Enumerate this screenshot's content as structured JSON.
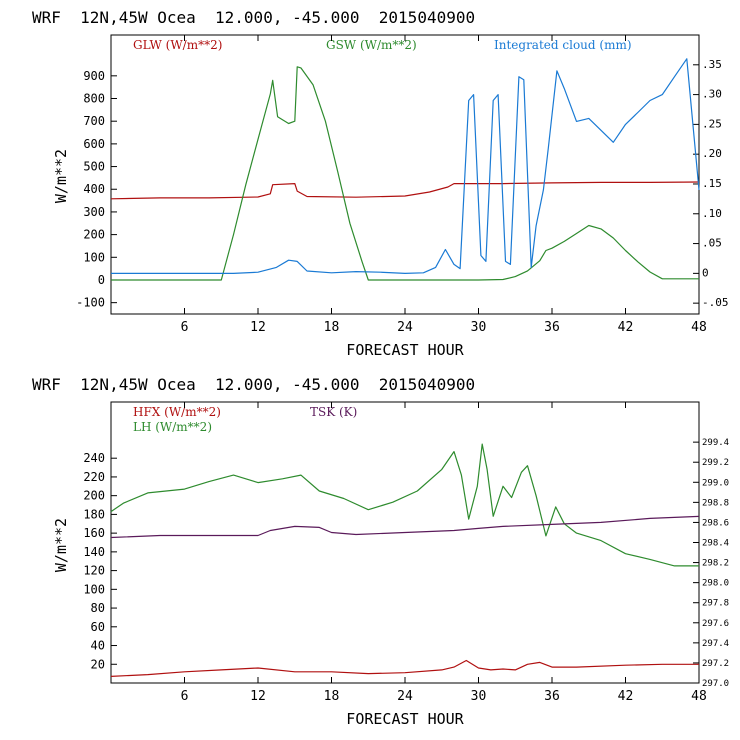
{
  "panels": [
    {
      "title": "WRF  12N,45W Ocea  12.000, -45.000  2015040900",
      "type": "line",
      "xlabel": "FORECAST HOUR",
      "ylabel": "W/m**2",
      "xlim": [
        0,
        48
      ],
      "ylim": [
        -150,
        1080
      ],
      "y2lim": [
        -0.0682,
        0.4
      ],
      "xticks": [
        6,
        12,
        18,
        24,
        30,
        36,
        42,
        48
      ],
      "yticks": [
        -100,
        0,
        100,
        200,
        300,
        400,
        500,
        600,
        700,
        800,
        900
      ],
      "yticklabels": [
        "-100",
        "0",
        "100",
        "200",
        "300",
        "400",
        "500",
        "600",
        "700",
        "800",
        "900"
      ],
      "y2ticks": [
        -0.05,
        0,
        0.05,
        0.1,
        0.15,
        0.2,
        0.25,
        0.3,
        0.35
      ],
      "y2ticklabels": [
        "-.05",
        "0",
        ".05",
        ".10",
        ".15",
        ".20",
        ".25",
        ".30",
        ".35"
      ],
      "series": [
        {
          "name": "GLW (W/m**2)",
          "color": "#b01010",
          "axis": "left",
          "x": [
            0,
            4,
            8,
            12,
            13,
            13.2,
            15,
            15.2,
            16,
            20,
            24,
            26,
            27.5,
            28,
            32,
            36,
            40,
            44,
            48
          ],
          "y": [
            358,
            362,
            362,
            366,
            380,
            420,
            425,
            392,
            368,
            365,
            370,
            388,
            410,
            425,
            425,
            428,
            430,
            430,
            432
          ]
        },
        {
          "name": "GSW (W/m**2)",
          "color": "#2e8b2e",
          "axis": "left",
          "x": [
            0,
            9,
            10,
            11,
            12,
            13,
            13.2,
            13.6,
            14.5,
            15,
            15.2,
            15.5,
            16.5,
            17.5,
            18.5,
            19.5,
            20.5,
            21,
            24,
            27,
            28,
            30,
            32,
            33,
            34,
            35,
            35.5,
            36,
            37,
            38,
            39,
            40,
            41,
            42,
            43,
            44,
            45,
            48
          ],
          "y": [
            0,
            0,
            200,
            420,
            620,
            820,
            880,
            720,
            690,
            700,
            940,
            935,
            860,
            700,
            480,
            250,
            80,
            0,
            0,
            0,
            0,
            0,
            2,
            15,
            40,
            85,
            130,
            140,
            170,
            205,
            240,
            225,
            185,
            130,
            80,
            35,
            5,
            5
          ]
        },
        {
          "name": "Integrated cloud (mm)",
          "color": "#1a7ad4",
          "axis": "right",
          "x": [
            0,
            10,
            12,
            13.5,
            14.5,
            15.2,
            16,
            18,
            20,
            22,
            24,
            25.5,
            26.5,
            27.3,
            28,
            28.5,
            29.2,
            29.6,
            30.2,
            30.6,
            31.2,
            31.6,
            32.2,
            32.6,
            33.3,
            33.7,
            34.3,
            34.7,
            35.3,
            35.7,
            36.4,
            37,
            38,
            39,
            40,
            41,
            42,
            43,
            44,
            45,
            46,
            47,
            48
          ],
          "y": [
            0,
            0,
            0.002,
            0.01,
            0.022,
            0.02,
            0.004,
            0.001,
            0.003,
            0.002,
            0,
            0.001,
            0.01,
            0.04,
            0.015,
            0.008,
            0.29,
            0.3,
            0.03,
            0.02,
            0.29,
            0.3,
            0.02,
            0.015,
            0.33,
            0.325,
            0.01,
            0.08,
            0.14,
            0.21,
            0.34,
            0.31,
            0.255,
            0.26,
            0.24,
            0.22,
            0.25,
            0.27,
            0.29,
            0.3,
            0.33,
            0.36,
            0.14
          ]
        }
      ]
    },
    {
      "title": "WRF  12N,45W Ocea  12.000, -45.000  2015040900",
      "type": "line",
      "xlabel": "FORECAST HOUR",
      "ylabel": "W/m**2",
      "xlim": [
        0,
        48
      ],
      "ylim": [
        0,
        300
      ],
      "y2lim": [
        297.0,
        299.8
      ],
      "xticks": [
        6,
        12,
        18,
        24,
        30,
        36,
        42,
        48
      ],
      "yticks": [
        20,
        40,
        60,
        80,
        100,
        120,
        140,
        160,
        180,
        200,
        220,
        240
      ],
      "yticklabels": [
        "20",
        "40",
        "60",
        "80",
        "100",
        "120",
        "140",
        "160",
        "180",
        "200",
        "220",
        "240"
      ],
      "y2ticks": [
        297.0,
        297.2,
        297.4,
        297.6,
        297.8,
        298.0,
        298.2,
        298.4,
        298.6,
        298.8,
        299.0,
        299.2,
        299.4
      ],
      "y2ticklabels": [
        "297.0",
        "297.2",
        "297.4",
        "297.6",
        "297.8",
        "298.0",
        "298.2",
        "298.4",
        "298.6",
        "298.8",
        "299.0",
        "299.2",
        "299.4"
      ],
      "series": [
        {
          "name": "HFX (W/m**2)",
          "color": "#b01010",
          "axis": "left",
          "x": [
            0,
            3,
            6,
            9,
            12,
            15,
            18,
            21,
            24,
            27,
            28,
            29,
            30,
            31,
            32,
            33,
            34,
            35,
            36,
            38,
            42,
            45,
            48
          ],
          "y": [
            7,
            9,
            12,
            14,
            16,
            12,
            12,
            10,
            11,
            14,
            17,
            24,
            16,
            14,
            15,
            14,
            20,
            22,
            17,
            17,
            19,
            20,
            20
          ]
        },
        {
          "name": "LH (W/m**2)",
          "color": "#2e8b2e",
          "axis": "left",
          "x": [
            0,
            1,
            3,
            6,
            8,
            10,
            12,
            14,
            15.5,
            17,
            19,
            21,
            23,
            25,
            27,
            28,
            28.6,
            29.2,
            29.9,
            30.3,
            30.7,
            31.2,
            32,
            32.7,
            33.5,
            34,
            34.7,
            35.5,
            36.3,
            37,
            38,
            40,
            42,
            44,
            46,
            48
          ],
          "y": [
            183,
            192,
            203,
            207,
            215,
            222,
            214,
            218,
            222,
            205,
            197,
            185,
            193,
            205,
            228,
            247,
            222,
            175,
            210,
            255,
            228,
            178,
            210,
            198,
            225,
            232,
            200,
            157,
            188,
            170,
            160,
            152,
            138,
            132,
            125,
            125
          ]
        },
        {
          "name": "TSK (K)",
          "color": "#5a1a5a",
          "axis": "right",
          "x": [
            0,
            4,
            8,
            12,
            13,
            15,
            17,
            18,
            20,
            24,
            28,
            30,
            32,
            36,
            40,
            44,
            48
          ],
          "y": [
            298.45,
            298.47,
            298.47,
            298.47,
            298.52,
            298.56,
            298.55,
            298.5,
            298.48,
            298.5,
            298.52,
            298.54,
            298.56,
            298.58,
            298.6,
            298.64,
            298.66
          ]
        }
      ]
    }
  ]
}
